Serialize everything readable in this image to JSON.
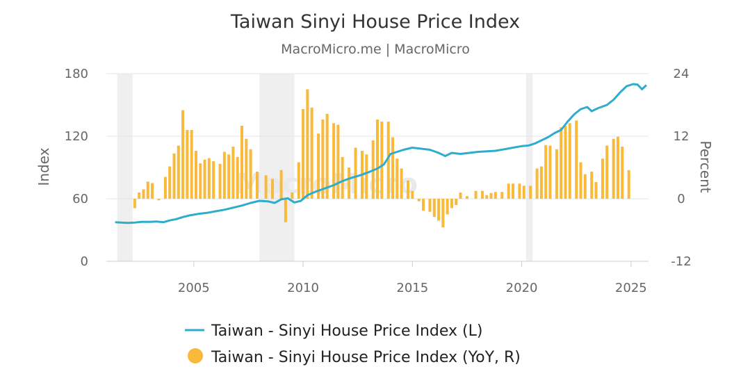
{
  "chart_data": {
    "type": "bar+line",
    "title": "Taiwan Sinyi House Price Index",
    "subtitle": "MacroMicro.me | MacroMicro",
    "watermark": "MacroMicro",
    "y_left": {
      "label": "Index",
      "ticks": [
        "0",
        "60",
        "120",
        "180"
      ],
      "min": 0,
      "max": 180
    },
    "y_right": {
      "label": "Percent",
      "ticks": [
        "-12",
        "0",
        "12",
        "24"
      ],
      "min": -12,
      "max": 24
    },
    "x_axis": {
      "ticks": [
        "2005",
        "2010",
        "2015",
        "2020",
        "2025"
      ],
      "min": 2001.0,
      "max": 2025.8
    },
    "recessions": [
      [
        2001.5,
        2002.2
      ],
      [
        2008.0,
        2009.6
      ],
      [
        2020.2,
        2020.5
      ]
    ],
    "line_series": {
      "name": "Taiwan - Sinyi House Price Index (L)",
      "color": "#2eaccc",
      "points": [
        [
          2001.4,
          37.5
        ],
        [
          2001.6,
          37.3
        ],
        [
          2001.8,
          37.0
        ],
        [
          2002.0,
          36.8
        ],
        [
          2002.3,
          37.2
        ],
        [
          2002.6,
          37.8
        ],
        [
          2003.0,
          37.8
        ],
        [
          2003.3,
          38.2
        ],
        [
          2003.6,
          37.5
        ],
        [
          2003.9,
          39.2
        ],
        [
          2004.2,
          40.5
        ],
        [
          2004.5,
          42.5
        ],
        [
          2004.8,
          44.0
        ],
        [
          2005.2,
          45.5
        ],
        [
          2005.6,
          46.5
        ],
        [
          2006.0,
          48.0
        ],
        [
          2006.4,
          49.5
        ],
        [
          2006.8,
          51.5
        ],
        [
          2007.2,
          53.5
        ],
        [
          2007.6,
          56.0
        ],
        [
          2008.0,
          58.0
        ],
        [
          2008.4,
          57.5
        ],
        [
          2008.7,
          56.0
        ],
        [
          2009.0,
          59.5
        ],
        [
          2009.3,
          60.5
        ],
        [
          2009.6,
          56.5
        ],
        [
          2009.9,
          58.0
        ],
        [
          2010.2,
          63.5
        ],
        [
          2010.6,
          67.0
        ],
        [
          2011.0,
          70.0
        ],
        [
          2011.4,
          73.0
        ],
        [
          2011.8,
          77.0
        ],
        [
          2012.2,
          80.0
        ],
        [
          2012.6,
          82.5
        ],
        [
          2013.0,
          85.5
        ],
        [
          2013.4,
          89.0
        ],
        [
          2013.7,
          93.0
        ],
        [
          2014.0,
          103.0
        ],
        [
          2014.3,
          105.0
        ],
        [
          2014.6,
          107.0
        ],
        [
          2015.0,
          109.0
        ],
        [
          2015.4,
          108.0
        ],
        [
          2015.8,
          107.0
        ],
        [
          2016.2,
          104.0
        ],
        [
          2016.5,
          101.0
        ],
        [
          2016.8,
          104.0
        ],
        [
          2017.2,
          103.0
        ],
        [
          2017.6,
          104.0
        ],
        [
          2018.0,
          105.0
        ],
        [
          2018.4,
          105.5
        ],
        [
          2018.8,
          106.0
        ],
        [
          2019.2,
          107.5
        ],
        [
          2019.6,
          109.0
        ],
        [
          2020.0,
          110.5
        ],
        [
          2020.3,
          111.0
        ],
        [
          2020.6,
          113.0
        ],
        [
          2020.9,
          116.0
        ],
        [
          2021.2,
          119.0
        ],
        [
          2021.5,
          123.0
        ],
        [
          2021.8,
          126.0
        ],
        [
          2022.1,
          134.0
        ],
        [
          2022.4,
          141.0
        ],
        [
          2022.7,
          146.0
        ],
        [
          2023.0,
          148.0
        ],
        [
          2023.2,
          144.0
        ],
        [
          2023.5,
          147.0
        ],
        [
          2023.9,
          150.0
        ],
        [
          2024.2,
          155.0
        ],
        [
          2024.5,
          162.0
        ],
        [
          2024.8,
          168.0
        ],
        [
          2025.1,
          170.0
        ],
        [
          2025.3,
          169.5
        ],
        [
          2025.5,
          165.0
        ],
        [
          2025.7,
          169.0
        ]
      ]
    },
    "bar_series": {
      "name": "Taiwan - Sinyi House Price Index (YoY, R)",
      "color": "#f9b93a",
      "points": [
        [
          2002.3,
          -1.8
        ],
        [
          2002.5,
          1.2
        ],
        [
          2002.7,
          1.8
        ],
        [
          2002.9,
          3.3
        ],
        [
          2003.1,
          3.0
        ],
        [
          2003.4,
          -0.3
        ],
        [
          2003.7,
          4.2
        ],
        [
          2003.9,
          6.2
        ],
        [
          2004.1,
          8.7
        ],
        [
          2004.3,
          10.2
        ],
        [
          2004.5,
          17.0
        ],
        [
          2004.7,
          13.2
        ],
        [
          2004.9,
          13.2
        ],
        [
          2005.1,
          9.2
        ],
        [
          2005.3,
          6.8
        ],
        [
          2005.5,
          7.5
        ],
        [
          2005.7,
          7.8
        ],
        [
          2005.9,
          7.2
        ],
        [
          2006.2,
          6.7
        ],
        [
          2006.4,
          9.0
        ],
        [
          2006.6,
          8.5
        ],
        [
          2006.8,
          10.0
        ],
        [
          2007.0,
          8.0
        ],
        [
          2007.2,
          14.0
        ],
        [
          2007.4,
          11.5
        ],
        [
          2007.6,
          9.5
        ],
        [
          2007.9,
          5.2
        ],
        [
          2008.3,
          4.5
        ],
        [
          2008.6,
          3.8
        ],
        [
          2009.0,
          5.5
        ],
        [
          2009.2,
          -4.5
        ],
        [
          2009.5,
          1.2
        ],
        [
          2009.8,
          7.0
        ],
        [
          2010.0,
          17.2
        ],
        [
          2010.2,
          21.0
        ],
        [
          2010.4,
          17.5
        ],
        [
          2010.7,
          12.5
        ],
        [
          2010.9,
          15.2
        ],
        [
          2011.1,
          16.3
        ],
        [
          2011.4,
          14.5
        ],
        [
          2011.6,
          14.2
        ],
        [
          2011.8,
          8.0
        ],
        [
          2012.1,
          6.0
        ],
        [
          2012.4,
          9.8
        ],
        [
          2012.7,
          9.2
        ],
        [
          2012.9,
          8.5
        ],
        [
          2013.2,
          11.2
        ],
        [
          2013.4,
          15.2
        ],
        [
          2013.6,
          14.8
        ],
        [
          2013.9,
          14.8
        ],
        [
          2014.1,
          11.8
        ],
        [
          2014.3,
          7.7
        ],
        [
          2014.5,
          5.8
        ],
        [
          2014.8,
          3.5
        ],
        [
          2015.0,
          1.5
        ],
        [
          2015.3,
          -0.5
        ],
        [
          2015.5,
          -2.3
        ],
        [
          2015.8,
          -2.5
        ],
        [
          2016.0,
          -3.5
        ],
        [
          2016.2,
          -4.2
        ],
        [
          2016.4,
          -5.5
        ],
        [
          2016.6,
          -3.0
        ],
        [
          2016.8,
          -1.8
        ],
        [
          2017.0,
          -1.2
        ],
        [
          2017.2,
          1.2
        ],
        [
          2017.5,
          0.5
        ],
        [
          2017.9,
          1.5
        ],
        [
          2018.2,
          1.5
        ],
        [
          2018.4,
          0.7
        ],
        [
          2018.6,
          1.1
        ],
        [
          2018.8,
          1.3
        ],
        [
          2019.1,
          1.3
        ],
        [
          2019.4,
          2.9
        ],
        [
          2019.6,
          2.9
        ],
        [
          2019.9,
          2.9
        ],
        [
          2020.1,
          2.5
        ],
        [
          2020.4,
          2.5
        ],
        [
          2020.7,
          5.8
        ],
        [
          2020.9,
          6.2
        ],
        [
          2021.1,
          10.3
        ],
        [
          2021.3,
          10.2
        ],
        [
          2021.6,
          9.5
        ],
        [
          2021.8,
          13.7
        ],
        [
          2022.0,
          14.0
        ],
        [
          2022.2,
          14.5
        ],
        [
          2022.5,
          15.0
        ],
        [
          2022.7,
          7.0
        ],
        [
          2022.9,
          4.7
        ],
        [
          2023.2,
          5.2
        ],
        [
          2023.4,
          3.2
        ],
        [
          2023.7,
          7.7
        ],
        [
          2023.9,
          10.2
        ],
        [
          2024.2,
          11.5
        ],
        [
          2024.4,
          11.9
        ],
        [
          2024.6,
          10.0
        ],
        [
          2024.9,
          5.5
        ]
      ]
    },
    "legend": [
      {
        "label": "Taiwan - Sinyi House Price Index (L)",
        "marker": "line",
        "color": "#2eaccc"
      },
      {
        "label": "Taiwan - Sinyi House Price Index (YoY, R)",
        "marker": "circle",
        "color": "#f9b93a"
      }
    ]
  }
}
